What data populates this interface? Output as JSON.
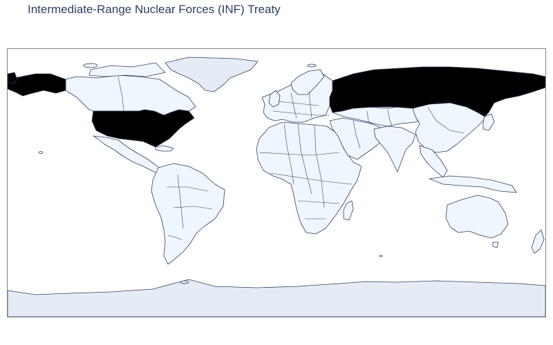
{
  "title": "Intermediate-Range Nuclear Forces (INF) Treaty",
  "colors": {
    "party": "#000000",
    "non_party": "#f0f6fd",
    "land_background": "#e5ecf6",
    "border": "#2a3f5f",
    "frame": "#7f7f7f",
    "title": "#2a3f5f"
  },
  "chart_data": {
    "type": "choropleth",
    "projection": "equirectangular",
    "highlighted_countries": [
      "United States",
      "Russia"
    ],
    "legend": "none"
  }
}
